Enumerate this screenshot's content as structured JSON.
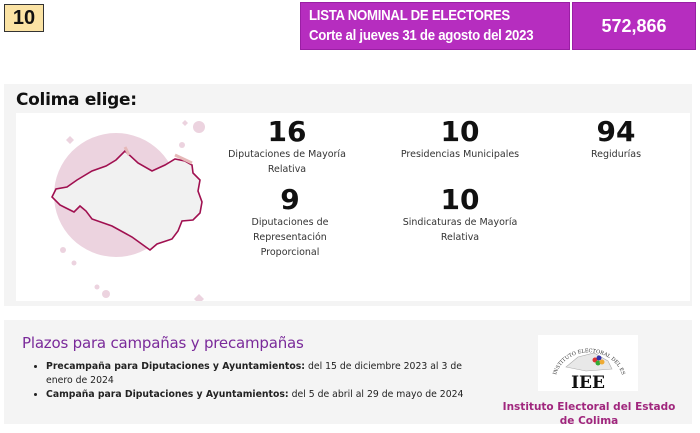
{
  "page_badge": "10",
  "lista_nominal": {
    "line1": "LISTA NOMINAL DE ELECTORES",
    "line2": "Corte al jueves 31 de agosto del 2023",
    "total": "572,866"
  },
  "colima": {
    "title": "Colima elige:",
    "stats": [
      {
        "value": "16",
        "label": "Diputaciones de Mayoría Relativa"
      },
      {
        "value": "10",
        "label": "Presidencias Municipales"
      },
      {
        "value": "94",
        "label": "Regidurías"
      },
      {
        "value": "9",
        "label": "Diputaciones de Representación Proporcional"
      },
      {
        "value": "10",
        "label": "Sindicaturas de Mayoría Relativa"
      }
    ]
  },
  "plazos": {
    "title": "Plazos para campañas y precampañas",
    "items": [
      {
        "bold": "Precampaña para Diputaciones y Ayuntamientos:",
        "text": " del 15 de diciembre 2023 al 3 de enero de 2024"
      },
      {
        "bold": "Campaña para Diputaciones y Ayuntamientos:",
        "text": " del 5 de abril al 29 de mayo de 2024"
      }
    ]
  },
  "institute": {
    "logo_text": "IEE",
    "logo_arc": "INSTITUTO ELECTORAL DEL ESTADO DE COLIMA",
    "name": "Instituto Electoral del Estado de Colima"
  },
  "colors": {
    "purple": "#b62dbf",
    "badge": "#fbe3a4",
    "heading_purple": "#7a2a9a",
    "institute_pink": "#a0267d"
  }
}
